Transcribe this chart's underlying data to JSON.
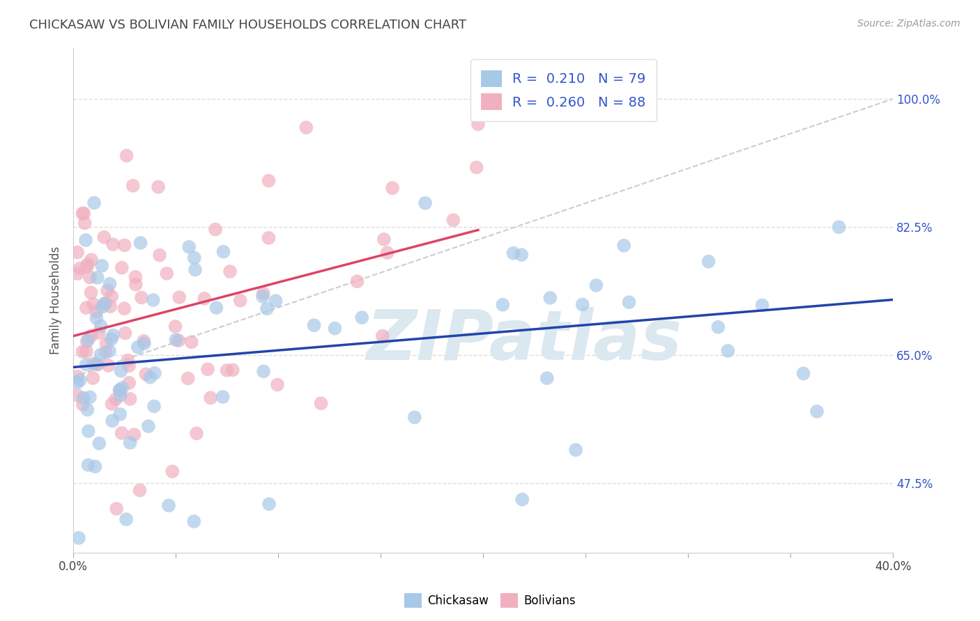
{
  "title": "CHICKASAW VS BOLIVIAN FAMILY HOUSEHOLDS CORRELATION CHART",
  "source": "Source: ZipAtlas.com",
  "ylabel": "Family Households",
  "ytick_labels": [
    "47.5%",
    "65.0%",
    "82.5%",
    "100.0%"
  ],
  "ytick_values": [
    47.5,
    65.0,
    82.5,
    100.0
  ],
  "xmin": 0.0,
  "xmax": 40.0,
  "ymin": 38.0,
  "ymax": 107.0,
  "chickasaw_R": 0.21,
  "chickasaw_N": 79,
  "bolivian_R": 0.26,
  "bolivian_N": 88,
  "chickasaw_color": "#a8c8e8",
  "bolivian_color": "#f0b0c0",
  "chickasaw_line_color": "#2244aa",
  "bolivian_line_color": "#dd4466",
  "ref_line_color": "#cccccc",
  "watermark": "ZIPatlas",
  "watermark_color": "#dce8f0",
  "title_color": "#444444",
  "legend_color": "#3355cc",
  "xtick_labels": [
    "0.0%",
    "",
    "",
    "",
    "",
    "",
    "",
    "",
    "40.0%"
  ]
}
